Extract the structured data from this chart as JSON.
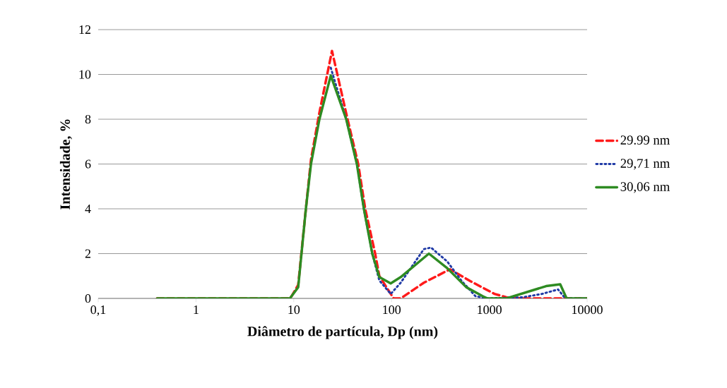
{
  "chart_data": {
    "type": "line",
    "xlabel": "Diâmetro de partícula, Dp (nm)",
    "ylabel": "Intensidade, %",
    "log": "x",
    "xlim": [
      0.1,
      10000
    ],
    "xticks": [
      {
        "value": 0.1,
        "label": "0,1"
      },
      1,
      10,
      100,
      1000,
      10000
    ],
    "ylim": [
      0,
      12
    ],
    "yticks": [
      0,
      2,
      4,
      6,
      8,
      10,
      12
    ],
    "grid": "y",
    "legend": "right",
    "marker": "none",
    "series": [
      {
        "name": "29.99 nm",
        "color": "#ff1a1a",
        "line_style": "dashed",
        "x": [
          0.4,
          9.1,
          9.5,
          11.1,
          13.3,
          15,
          18.3,
          24.6,
          35.5,
          45.6,
          53.8,
          68,
          75,
          105,
          124,
          214,
          396,
          653,
          1130,
          1500,
          2190,
          5310,
          6170,
          10000
        ],
        "values": [
          0,
          0,
          0.1,
          0.6,
          4,
          6.2,
          8.3,
          11.05,
          8,
          6,
          4,
          2,
          1,
          0,
          0,
          0.7,
          1.3,
          0.75,
          0.2,
          0.05,
          0,
          0,
          0,
          0
        ]
      },
      {
        "name": "29,71 nm",
        "color": "#1f3aa6",
        "line_style": "dotted",
        "x": [
          23.9,
          34.4,
          44.2,
          52.1,
          63.5,
          75,
          98,
          124,
          214,
          253,
          371,
          517,
          721,
          957,
          2190,
          3450,
          5050,
          5970,
          10000
        ],
        "values": [
          10.3,
          8,
          6,
          4,
          2,
          0.8,
          0.2,
          0.7,
          2.2,
          2.27,
          1.65,
          0.8,
          0.1,
          0,
          0.05,
          0.2,
          0.4,
          0,
          0
        ]
      },
      {
        "name": "30,06 nm",
        "color": "#2e8b22",
        "line_style": "solid",
        "x": [
          0.4,
          9.1,
          9.5,
          11.1,
          13.3,
          15,
          18.3,
          23.9,
          34.4,
          44.2,
          52.1,
          63.5,
          75,
          98,
          124,
          241,
          371,
          581,
          853,
          957,
          1500,
          3810,
          5310,
          6170,
          10000
        ],
        "values": [
          0,
          0,
          0.1,
          0.5,
          4,
          6,
          8,
          9.95,
          8,
          6,
          4,
          2,
          0.95,
          0.67,
          0.95,
          2,
          1.35,
          0.5,
          0.1,
          0,
          0,
          0.55,
          0.63,
          0,
          0
        ]
      }
    ]
  }
}
